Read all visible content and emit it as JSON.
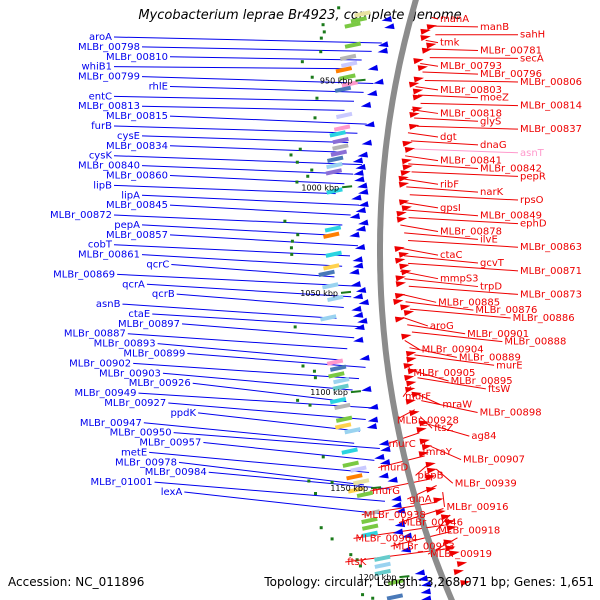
{
  "title": "Mycobacterium leprae Br4923, complete genome",
  "accession_label": "Accession: NC_011896",
  "topology_label": "Topology: circular; Length: 3,268,071 bp; Genes: 1,651",
  "colors": {
    "backbone": "#8c8c8c",
    "plus_strand": "#0000ee",
    "minus_strand": "#ee0000",
    "pseudo_label": "#ff99cc",
    "tick": "#1a7a1a"
  },
  "ticks": [
    "950 kbp",
    "1000 kbp",
    "1050 kbp",
    "1100 kbp",
    "1150 kbp",
    "1200 kbp"
  ],
  "left_labels": [
    "aroA",
    "MLBr_00798",
    "MLBr_00810",
    "whiB1",
    "MLBr_00799",
    "rhlE",
    "entC",
    "MLBr_00813",
    "MLBr_00815",
    "furB",
    "cysE",
    "MLBr_00834",
    "cysK",
    "MLBr_00840",
    "MLBr_00860",
    "lipB",
    "lipA",
    "MLBr_00845",
    "MLBr_00872",
    "pepA",
    "MLBr_00857",
    "cobT",
    "MLBr_00861",
    "qcrC",
    "MLBr_00869",
    "qcrA",
    "qcrB",
    "asnB",
    "ctaE",
    "MLBr_00897",
    "MLBr_00887",
    "MLBr_00893",
    "MLBr_00899",
    "MLBr_00902",
    "MLBr_00903",
    "MLBr_00926",
    "MLBr_00949",
    "MLBr_00927",
    "ppdK",
    "MLBr_00947",
    "MLBr_00950",
    "MLBr_00957",
    "metE",
    "MLBr_00978",
    "MLBr_00984",
    "MLBr_01001",
    "lexA"
  ],
  "right_labels": [
    "manA",
    "manB",
    "sahH",
    "tmk",
    "MLBr_00781",
    "secA",
    "MLBr_00793",
    "MLBr_00796",
    "MLBr_00806",
    "MLBr_00803",
    "moeZ",
    "MLBr_00814",
    "MLBr_00818",
    "glyS",
    "MLBr_00837",
    "dgt",
    "dnaG",
    "asnT",
    "MLBr_00841",
    "MLBr_00842",
    "pepR",
    "ribF",
    "narK",
    "rpsO",
    "gpsI",
    "MLBr_00849",
    "ephD",
    "MLBr_00878",
    "ilvE",
    "MLBr_00863",
    "ctaC",
    "gcvT",
    "MLBr_00871",
    "mmpS3",
    "trpD",
    "MLBr_00873",
    "MLBr_00885",
    "MLBr_00876",
    "MLBr_00886",
    "aroG",
    "MLBr_00901",
    "MLBr_00888",
    "MLBr_00904",
    "MLBr_00889",
    "murE",
    "MLBr_00905",
    "MLBr_00895",
    "ftsW",
    "murF",
    "mraW",
    "MLBr_00898",
    "MLBr_00928",
    "ftsZ",
    "ag84",
    "murC",
    "mraY",
    "MLBr_00907",
    "murD",
    "pbpB",
    "MLBr_00939",
    "murG",
    "glnA",
    "MLBr_00916",
    "MLBr_00938",
    "MLBr_00946",
    "MLBr_00918",
    "MLBr_00964",
    "MLBr_00953",
    "MLBr_00919",
    "ftsK"
  ]
}
